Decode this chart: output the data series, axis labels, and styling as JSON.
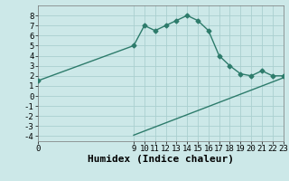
{
  "line1_x": [
    0,
    9,
    10,
    11,
    12,
    13,
    14,
    15,
    16,
    17,
    18,
    19,
    20,
    21,
    22,
    23
  ],
  "line1_y": [
    1.5,
    5.0,
    7.0,
    6.5,
    7.0,
    7.5,
    8.0,
    7.5,
    6.5,
    4.0,
    3.0,
    2.2,
    2.0,
    2.5,
    2.0,
    2.0
  ],
  "line2_x": [
    9,
    23
  ],
  "line2_y": [
    -3.9,
    1.8
  ],
  "line_color": "#2d7b6b",
  "bg_color": "#cce8e8",
  "grid_color": "#aacfcf",
  "xlabel": "Humidex (Indice chaleur)",
  "xlim": [
    0,
    23
  ],
  "ylim": [
    -4.5,
    9
  ],
  "yticks": [
    -4,
    -3,
    -2,
    -1,
    0,
    1,
    2,
    3,
    4,
    5,
    6,
    7,
    8
  ],
  "xticks": [
    0,
    9,
    10,
    11,
    12,
    13,
    14,
    15,
    16,
    17,
    18,
    19,
    20,
    21,
    22,
    23
  ],
  "marker": "D",
  "marker_size": 2.5,
  "linewidth": 1.0,
  "xlabel_fontsize": 8,
  "tick_fontsize": 6.5
}
